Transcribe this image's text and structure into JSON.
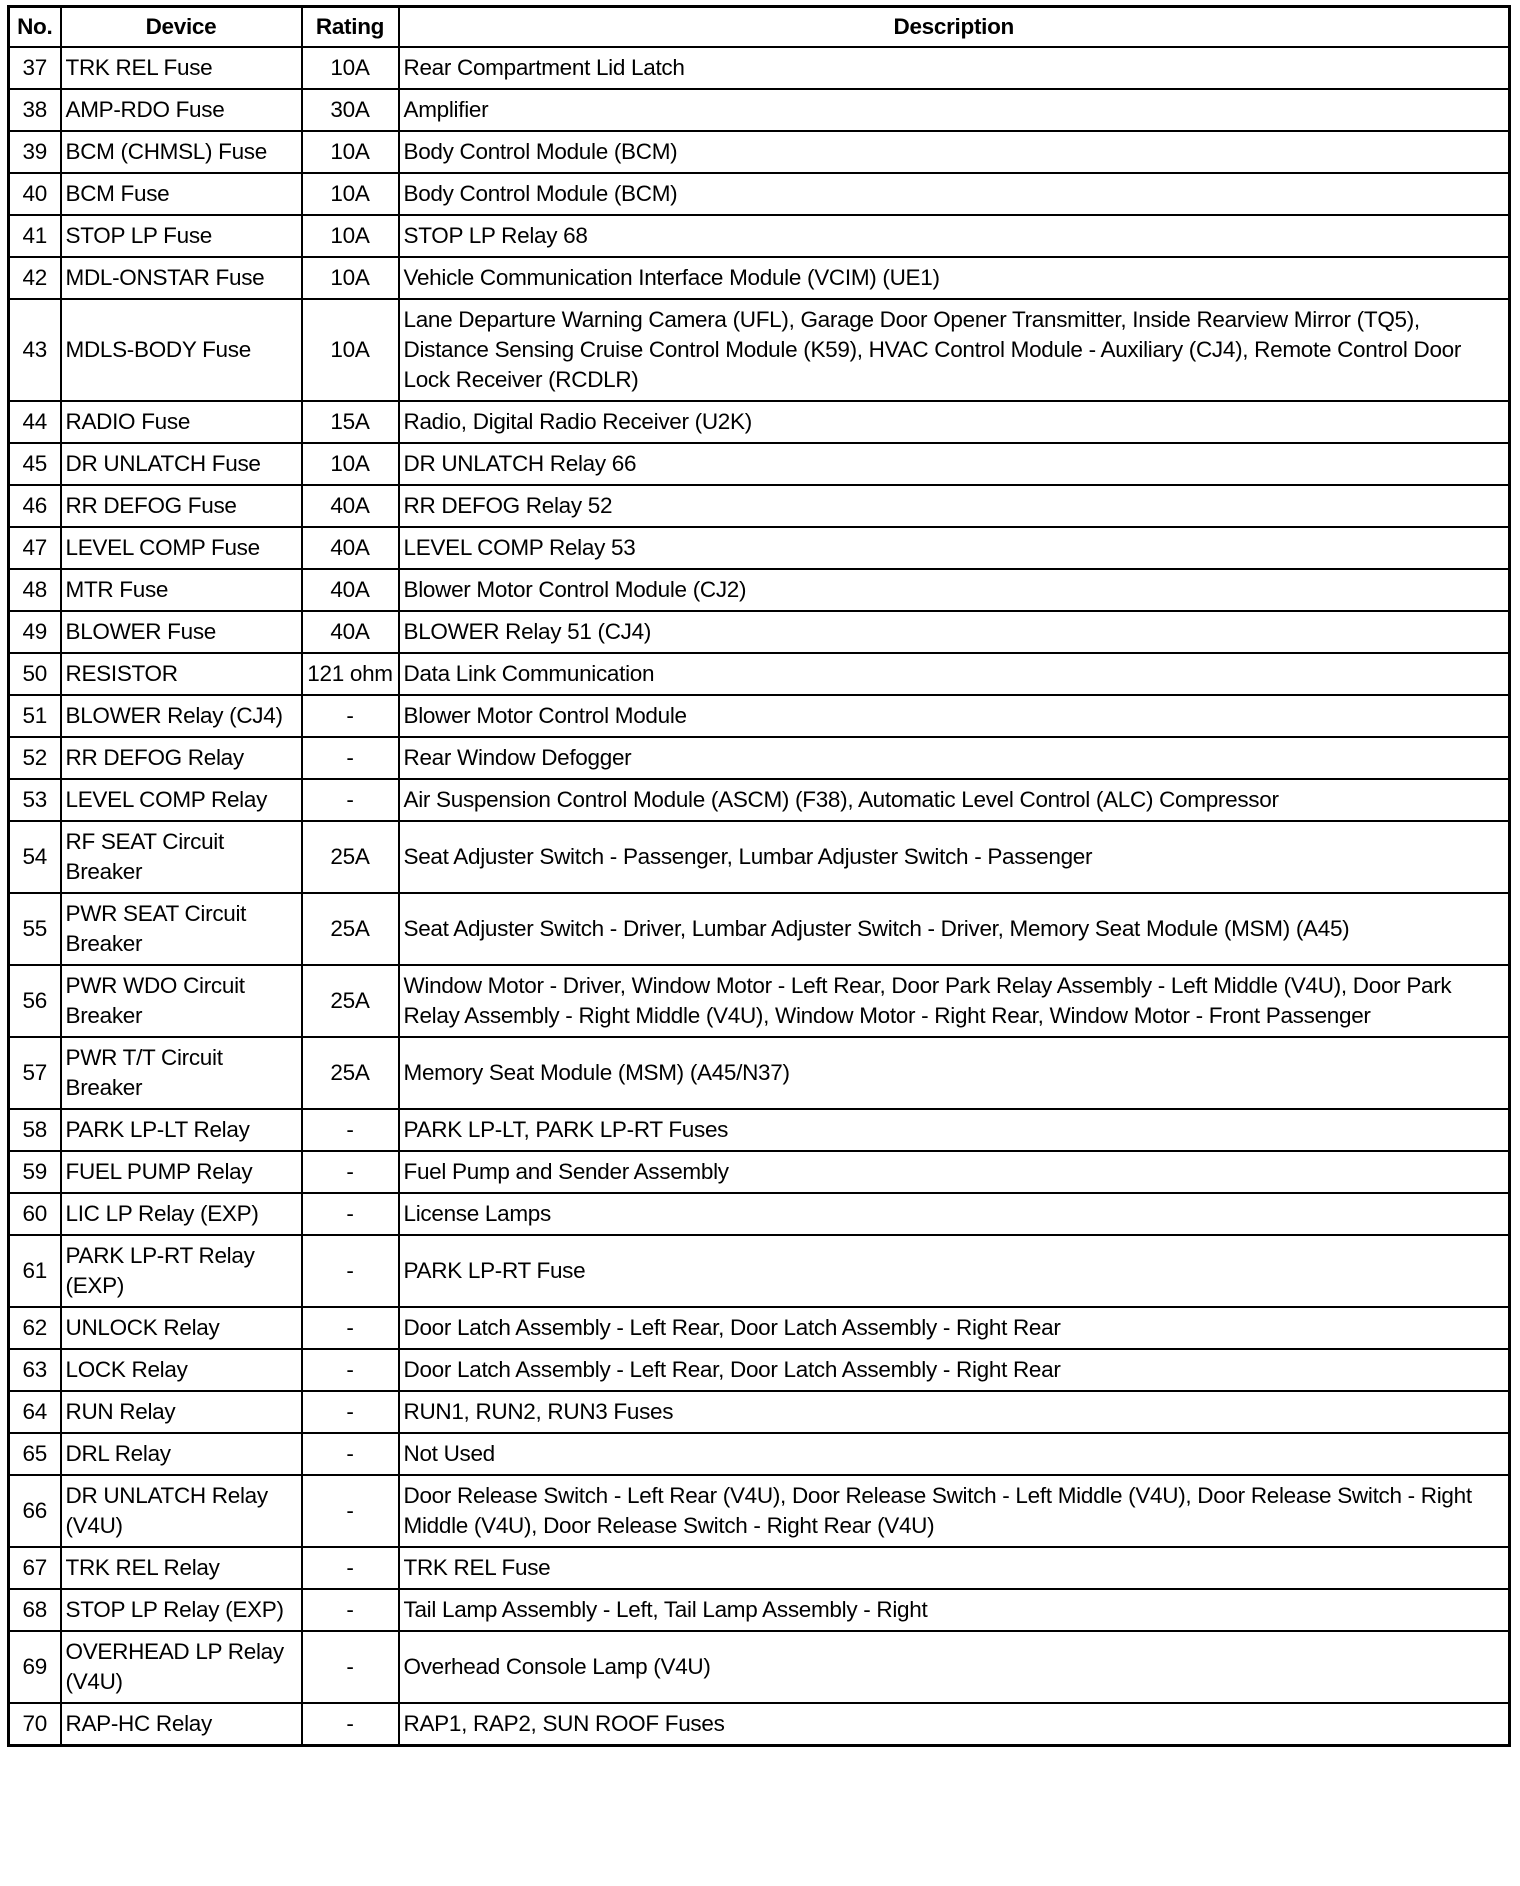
{
  "table": {
    "headers": {
      "no": "No.",
      "device": "Device",
      "rating": "Rating",
      "description": "Description"
    },
    "rows": [
      {
        "no": "37",
        "device": "TRK REL Fuse",
        "rating": "10A",
        "description": "Rear Compartment Lid Latch"
      },
      {
        "no": "38",
        "device": "AMP-RDO Fuse",
        "rating": "30A",
        "description": "Amplifier"
      },
      {
        "no": "39",
        "device": "BCM (CHMSL) Fuse",
        "rating": "10A",
        "description": "Body Control Module (BCM)"
      },
      {
        "no": "40",
        "device": "BCM Fuse",
        "rating": "10A",
        "description": "Body Control Module (BCM)"
      },
      {
        "no": "41",
        "device": "STOP LP Fuse",
        "rating": "10A",
        "description": "STOP LP Relay 68"
      },
      {
        "no": "42",
        "device": "MDL-ONSTAR Fuse",
        "rating": "10A",
        "description": "Vehicle Communication Interface Module (VCIM) (UE1)"
      },
      {
        "no": "43",
        "device": "MDLS-BODY Fuse",
        "rating": "10A",
        "description": "Lane Departure Warning Camera (UFL), Garage Door Opener Transmitter, Inside Rearview Mirror (TQ5), Distance Sensing Cruise Control Module (K59), HVAC Control Module - Auxiliary (CJ4), Remote Control Door Lock Receiver (RCDLR)"
      },
      {
        "no": "44",
        "device": "RADIO Fuse",
        "rating": "15A",
        "description": "Radio, Digital Radio Receiver (U2K)"
      },
      {
        "no": "45",
        "device": "DR UNLATCH Fuse",
        "rating": "10A",
        "description": "DR UNLATCH Relay 66"
      },
      {
        "no": "46",
        "device": "RR DEFOG Fuse",
        "rating": "40A",
        "description": "RR DEFOG Relay 52"
      },
      {
        "no": "47",
        "device": "LEVEL COMP Fuse",
        "rating": "40A",
        "description": "LEVEL COMP Relay 53"
      },
      {
        "no": "48",
        "device": "MTR Fuse",
        "rating": "40A",
        "description": "Blower Motor Control Module (CJ2)"
      },
      {
        "no": "49",
        "device": "BLOWER Fuse",
        "rating": "40A",
        "description": "BLOWER Relay 51 (CJ4)"
      },
      {
        "no": "50",
        "device": "RESISTOR",
        "rating": "121 ohm",
        "description": "Data Link Communication"
      },
      {
        "no": "51",
        "device": "BLOWER Relay (CJ4)",
        "rating": "-",
        "description": "Blower Motor Control Module"
      },
      {
        "no": "52",
        "device": "RR DEFOG Relay",
        "rating": "-",
        "description": "Rear Window Defogger"
      },
      {
        "no": "53",
        "device": "LEVEL COMP Relay",
        "rating": "-",
        "description": "Air Suspension Control Module (ASCM) (F38), Automatic Level Control (ALC) Compressor"
      },
      {
        "no": "54",
        "device": "RF SEAT Circuit Breaker",
        "rating": "25A",
        "description": "Seat Adjuster Switch - Passenger, Lumbar Adjuster Switch - Passenger"
      },
      {
        "no": "55",
        "device": "PWR SEAT Circuit Breaker",
        "rating": "25A",
        "description": "Seat Adjuster Switch - Driver, Lumbar Adjuster Switch - Driver, Memory Seat Module (MSM) (A45)"
      },
      {
        "no": "56",
        "device": "PWR WDO Circuit Breaker",
        "rating": "25A",
        "description": "Window Motor - Driver, Window Motor - Left Rear, Door Park Relay Assembly - Left Middle (V4U), Door Park Relay Assembly - Right Middle (V4U), Window Motor - Right Rear, Window Motor - Front Passenger"
      },
      {
        "no": "57",
        "device": "PWR T/T Circuit Breaker",
        "rating": "25A",
        "description": "Memory Seat Module (MSM) (A45/N37)"
      },
      {
        "no": "58",
        "device": "PARK LP-LT Relay",
        "rating": "-",
        "description": "PARK LP-LT, PARK LP-RT Fuses"
      },
      {
        "no": "59",
        "device": "FUEL PUMP Relay",
        "rating": "-",
        "description": "Fuel Pump and Sender Assembly"
      },
      {
        "no": "60",
        "device": "LIC LP Relay (EXP)",
        "rating": "-",
        "description": "License Lamps"
      },
      {
        "no": "61",
        "device": "PARK LP-RT Relay (EXP)",
        "rating": "-",
        "description": "PARK LP-RT Fuse"
      },
      {
        "no": "62",
        "device": "UNLOCK Relay",
        "rating": "-",
        "description": "Door Latch Assembly - Left Rear, Door Latch Assembly - Right Rear"
      },
      {
        "no": "63",
        "device": "LOCK Relay",
        "rating": "-",
        "description": "Door Latch Assembly - Left Rear, Door Latch Assembly - Right Rear"
      },
      {
        "no": "64",
        "device": "RUN Relay",
        "rating": "-",
        "description": "RUN1, RUN2, RUN3 Fuses"
      },
      {
        "no": "65",
        "device": "DRL Relay",
        "rating": "-",
        "description": "Not Used"
      },
      {
        "no": "66",
        "device": "DR UNLATCH Relay (V4U)",
        "rating": "-",
        "description": "Door Release Switch - Left Rear (V4U), Door Release Switch - Left Middle (V4U), Door Release Switch - Right Middle (V4U), Door Release Switch - Right Rear (V4U)"
      },
      {
        "no": "67",
        "device": "TRK REL Relay",
        "rating": "-",
        "description": "TRK REL Fuse"
      },
      {
        "no": "68",
        "device": "STOP LP Relay (EXP)",
        "rating": "-",
        "description": "Tail Lamp Assembly - Left, Tail Lamp Assembly - Right"
      },
      {
        "no": "69",
        "device": "OVERHEAD LP Relay (V4U)",
        "rating": "-",
        "description": "Overhead Console Lamp (V4U)"
      },
      {
        "no": "70",
        "device": "RAP-HC Relay",
        "rating": "-",
        "description": "RAP1, RAP2, SUN ROOF Fuses"
      }
    ]
  }
}
